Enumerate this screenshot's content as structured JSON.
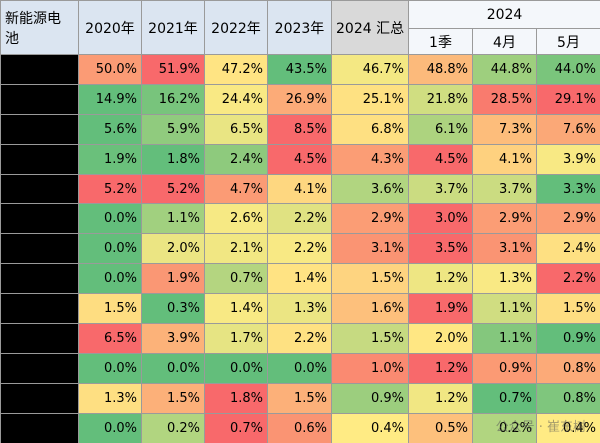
{
  "table": {
    "header": {
      "corner": "新能源电池",
      "years": [
        "2020年",
        "2021年",
        "2022年",
        "2023年",
        "2024 汇总"
      ],
      "group": "2024",
      "sub": [
        "1季",
        "4月",
        "5月"
      ]
    },
    "rows": [
      [
        "50.0%",
        "51.9%",
        "47.2%",
        "43.5%",
        "46.7%",
        "48.8%",
        "44.8%",
        "44.0%"
      ],
      [
        "14.9%",
        "16.2%",
        "24.4%",
        "26.9%",
        "25.1%",
        "21.8%",
        "28.5%",
        "29.1%"
      ],
      [
        "5.6%",
        "5.9%",
        "6.5%",
        "8.5%",
        "6.8%",
        "6.1%",
        "7.3%",
        "7.6%"
      ],
      [
        "1.9%",
        "1.8%",
        "2.4%",
        "4.5%",
        "4.3%",
        "4.5%",
        "4.1%",
        "3.9%"
      ],
      [
        "5.2%",
        "5.2%",
        "4.7%",
        "4.1%",
        "3.6%",
        "3.7%",
        "3.7%",
        "3.3%"
      ],
      [
        "0.0%",
        "1.1%",
        "2.6%",
        "2.2%",
        "2.9%",
        "3.0%",
        "2.9%",
        "2.9%"
      ],
      [
        "0.0%",
        "2.0%",
        "2.1%",
        "2.2%",
        "3.1%",
        "3.5%",
        "3.1%",
        "2.4%"
      ],
      [
        "0.0%",
        "1.9%",
        "0.7%",
        "1.4%",
        "1.5%",
        "1.2%",
        "1.3%",
        "2.2%"
      ],
      [
        "1.5%",
        "0.3%",
        "1.4%",
        "1.3%",
        "1.6%",
        "1.9%",
        "1.1%",
        "1.5%"
      ],
      [
        "6.5%",
        "3.9%",
        "1.7%",
        "2.2%",
        "1.5%",
        "2.0%",
        "1.1%",
        "0.9%"
      ],
      [
        "0.0%",
        "0.0%",
        "0.0%",
        "0.0%",
        "1.0%",
        "1.2%",
        "0.9%",
        "0.8%"
      ],
      [
        "1.3%",
        "1.5%",
        "1.8%",
        "1.5%",
        "0.9%",
        "1.2%",
        "0.7%",
        "0.8%"
      ],
      [
        "0.0%",
        "0.2%",
        "0.7%",
        "0.6%",
        "0.4%",
        "0.5%",
        "0.2%",
        "0.4%"
      ]
    ]
  },
  "watermark": "公众号 · 崔东树"
}
